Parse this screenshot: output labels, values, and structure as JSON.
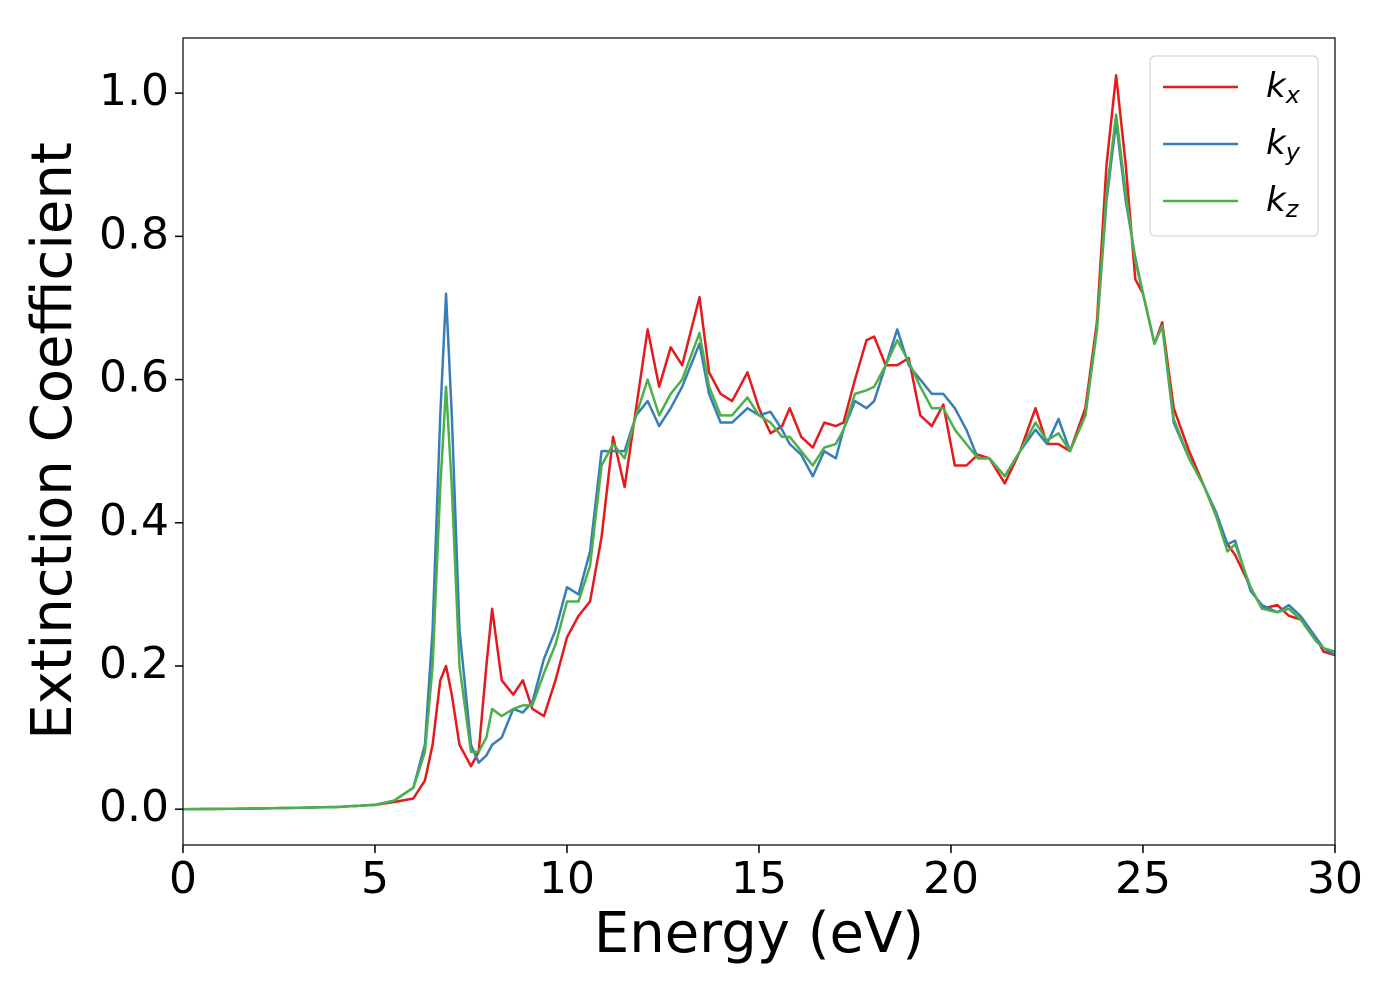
{
  "chart_data": {
    "type": "line",
    "xlabel": "Energy (eV)",
    "ylabel": "Extinction Coefficient",
    "x": [
      0,
      2,
      4,
      5,
      5.5,
      6.0,
      6.3,
      6.5,
      6.7,
      6.85,
      7.0,
      7.2,
      7.5,
      7.7,
      7.9,
      8.05,
      8.3,
      8.6,
      8.85,
      9.1,
      9.4,
      9.7,
      10.0,
      10.3,
      10.6,
      10.9,
      11.2,
      11.5,
      11.8,
      12.1,
      12.4,
      12.7,
      13.0,
      13.45,
      13.7,
      14.0,
      14.3,
      14.7,
      15.0,
      15.3,
      15.6,
      15.8,
      16.1,
      16.4,
      16.7,
      17.0,
      17.2,
      17.5,
      17.8,
      18.0,
      18.3,
      18.6,
      18.9,
      19.2,
      19.5,
      19.8,
      20.1,
      20.4,
      20.7,
      21.0,
      21.4,
      21.8,
      22.2,
      22.5,
      22.8,
      23.1,
      23.5,
      23.8,
      24.05,
      24.3,
      24.55,
      24.8,
      25.0,
      25.3,
      25.5,
      25.8,
      26.2,
      26.6,
      26.9,
      27.2,
      27.4,
      27.8,
      28.1,
      28.5,
      28.8,
      29.1,
      29.5,
      29.7,
      30.0
    ],
    "series": [
      {
        "name": "kx",
        "color": "#e41a1c",
        "values": [
          0,
          0.001,
          0.003,
          0.006,
          0.01,
          0.015,
          0.04,
          0.09,
          0.18,
          0.2,
          0.16,
          0.09,
          0.06,
          0.08,
          0.2,
          0.28,
          0.18,
          0.16,
          0.18,
          0.14,
          0.13,
          0.18,
          0.24,
          0.27,
          0.29,
          0.38,
          0.52,
          0.45,
          0.56,
          0.67,
          0.59,
          0.645,
          0.62,
          0.715,
          0.61,
          0.58,
          0.57,
          0.61,
          0.56,
          0.525,
          0.535,
          0.56,
          0.52,
          0.505,
          0.54,
          0.535,
          0.54,
          0.6,
          0.655,
          0.66,
          0.62,
          0.62,
          0.63,
          0.55,
          0.535,
          0.565,
          0.48,
          0.48,
          0.495,
          0.49,
          0.455,
          0.5,
          0.56,
          0.51,
          0.51,
          0.5,
          0.56,
          0.68,
          0.9,
          1.025,
          0.9,
          0.74,
          0.72,
          0.65,
          0.68,
          0.56,
          0.5,
          0.45,
          0.41,
          0.37,
          0.355,
          0.31,
          0.28,
          0.285,
          0.27,
          0.265,
          0.24,
          0.22,
          0.215
        ]
      },
      {
        "name": "ky",
        "color": "#377eb8",
        "values": [
          0,
          0.001,
          0.003,
          0.006,
          0.012,
          0.03,
          0.09,
          0.25,
          0.55,
          0.72,
          0.55,
          0.25,
          0.09,
          0.065,
          0.075,
          0.09,
          0.1,
          0.14,
          0.135,
          0.15,
          0.21,
          0.25,
          0.31,
          0.3,
          0.36,
          0.5,
          0.5,
          0.5,
          0.55,
          0.57,
          0.535,
          0.56,
          0.59,
          0.65,
          0.58,
          0.54,
          0.54,
          0.56,
          0.55,
          0.555,
          0.53,
          0.51,
          0.495,
          0.465,
          0.5,
          0.49,
          0.53,
          0.57,
          0.56,
          0.57,
          0.62,
          0.67,
          0.62,
          0.6,
          0.58,
          0.58,
          0.56,
          0.53,
          0.49,
          0.49,
          0.465,
          0.5,
          0.53,
          0.51,
          0.545,
          0.5,
          0.55,
          0.67,
          0.85,
          0.96,
          0.85,
          0.77,
          0.72,
          0.65,
          0.675,
          0.54,
          0.49,
          0.45,
          0.415,
          0.37,
          0.375,
          0.305,
          0.285,
          0.275,
          0.285,
          0.27,
          0.24,
          0.225,
          0.215
        ]
      },
      {
        "name": "kz",
        "color": "#4daf4a",
        "values": [
          0,
          0.001,
          0.003,
          0.006,
          0.012,
          0.03,
          0.08,
          0.2,
          0.45,
          0.59,
          0.45,
          0.2,
          0.08,
          0.08,
          0.1,
          0.14,
          0.13,
          0.14,
          0.145,
          0.145,
          0.19,
          0.23,
          0.29,
          0.29,
          0.34,
          0.48,
          0.51,
          0.49,
          0.55,
          0.6,
          0.55,
          0.58,
          0.6,
          0.665,
          0.59,
          0.55,
          0.55,
          0.575,
          0.55,
          0.54,
          0.52,
          0.52,
          0.5,
          0.48,
          0.505,
          0.51,
          0.53,
          0.58,
          0.585,
          0.59,
          0.62,
          0.655,
          0.625,
          0.59,
          0.56,
          0.56,
          0.53,
          0.51,
          0.49,
          0.49,
          0.465,
          0.5,
          0.54,
          0.515,
          0.525,
          0.5,
          0.55,
          0.67,
          0.86,
          0.97,
          0.86,
          0.765,
          0.72,
          0.65,
          0.675,
          0.545,
          0.49,
          0.45,
          0.41,
          0.36,
          0.37,
          0.31,
          0.28,
          0.275,
          0.28,
          0.265,
          0.235,
          0.225,
          0.22
        ]
      }
    ],
    "xlim": [
      0,
      30
    ],
    "xticks": [
      0,
      5,
      10,
      15,
      20,
      25,
      30
    ],
    "ylim": [
      -0.05,
      1.077
    ],
    "yticks": [
      {
        "value": 0,
        "label": "0.0"
      },
      0.2,
      0.4,
      0.6,
      0.8,
      {
        "value": 1,
        "label": "1.0"
      }
    ],
    "legend": "upper right",
    "grid": false
  }
}
